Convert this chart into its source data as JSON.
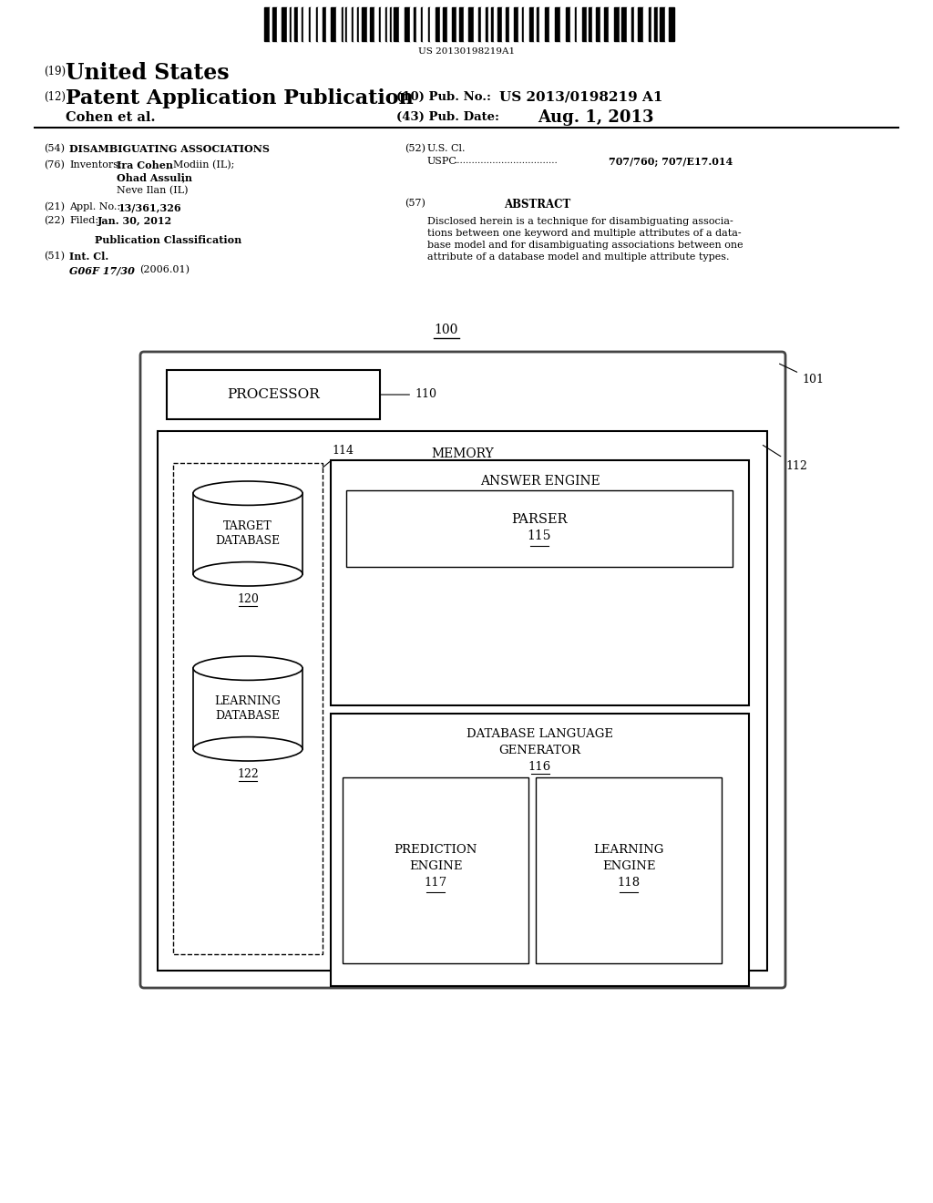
{
  "bg_color": "#ffffff",
  "barcode_text": "US 20130198219A1",
  "patent_title_19": "United States",
  "patent_title_12": "Patent Application Publication",
  "pub_no_label": "(10) Pub. No.:",
  "pub_no_value": "US 2013/0198219 A1",
  "authors": "Cohen et al.",
  "pub_date_label": "(43) Pub. Date:",
  "pub_date_value": "Aug. 1, 2013",
  "field54_value": "DISAMBIGUATING ASSOCIATIONS",
  "field52_codes": "707/760; 707/E17.014",
  "field21_value": "13/361,326",
  "field22_value": "Jan. 30, 2012",
  "pub_class_title": "Publication Classification",
  "field51_code": "G06F 17/30",
  "field51_year": "(2006.01)",
  "abstract_lines": [
    "Disclosed herein is a technique for disambiguating associa-",
    "tions between one keyword and multiple attributes of a data-",
    "base model and for disambiguating associations between one",
    "attribute of a database model and multiple attribute types."
  ],
  "fig_label": "100",
  "processor_text": "PROCESSOR",
  "memory_text": "MEMORY",
  "answer_engine_text": "ANSWER ENGINE",
  "parser_text": "PARSER",
  "parser_num": "115",
  "db_lang_line1": "DATABASE LANGUAGE",
  "db_lang_line2": "GENERATOR",
  "db_lang_num": "116",
  "pred_engine_line1": "PREDICTION",
  "pred_engine_line2": "ENGINE",
  "pred_engine_num": "117",
  "learn_engine_line1": "LEARNING",
  "learn_engine_line2": "ENGINE",
  "learn_engine_num": "118",
  "target_db_line1": "TARGET",
  "target_db_line2": "DATABASE",
  "target_db_num": "120",
  "learn_db_line1": "LEARNING",
  "learn_db_line2": "DATABASE",
  "learn_db_num": "122",
  "label_100": "100",
  "label_101": "101",
  "label_110": "110",
  "label_112": "112",
  "label_114": "114"
}
